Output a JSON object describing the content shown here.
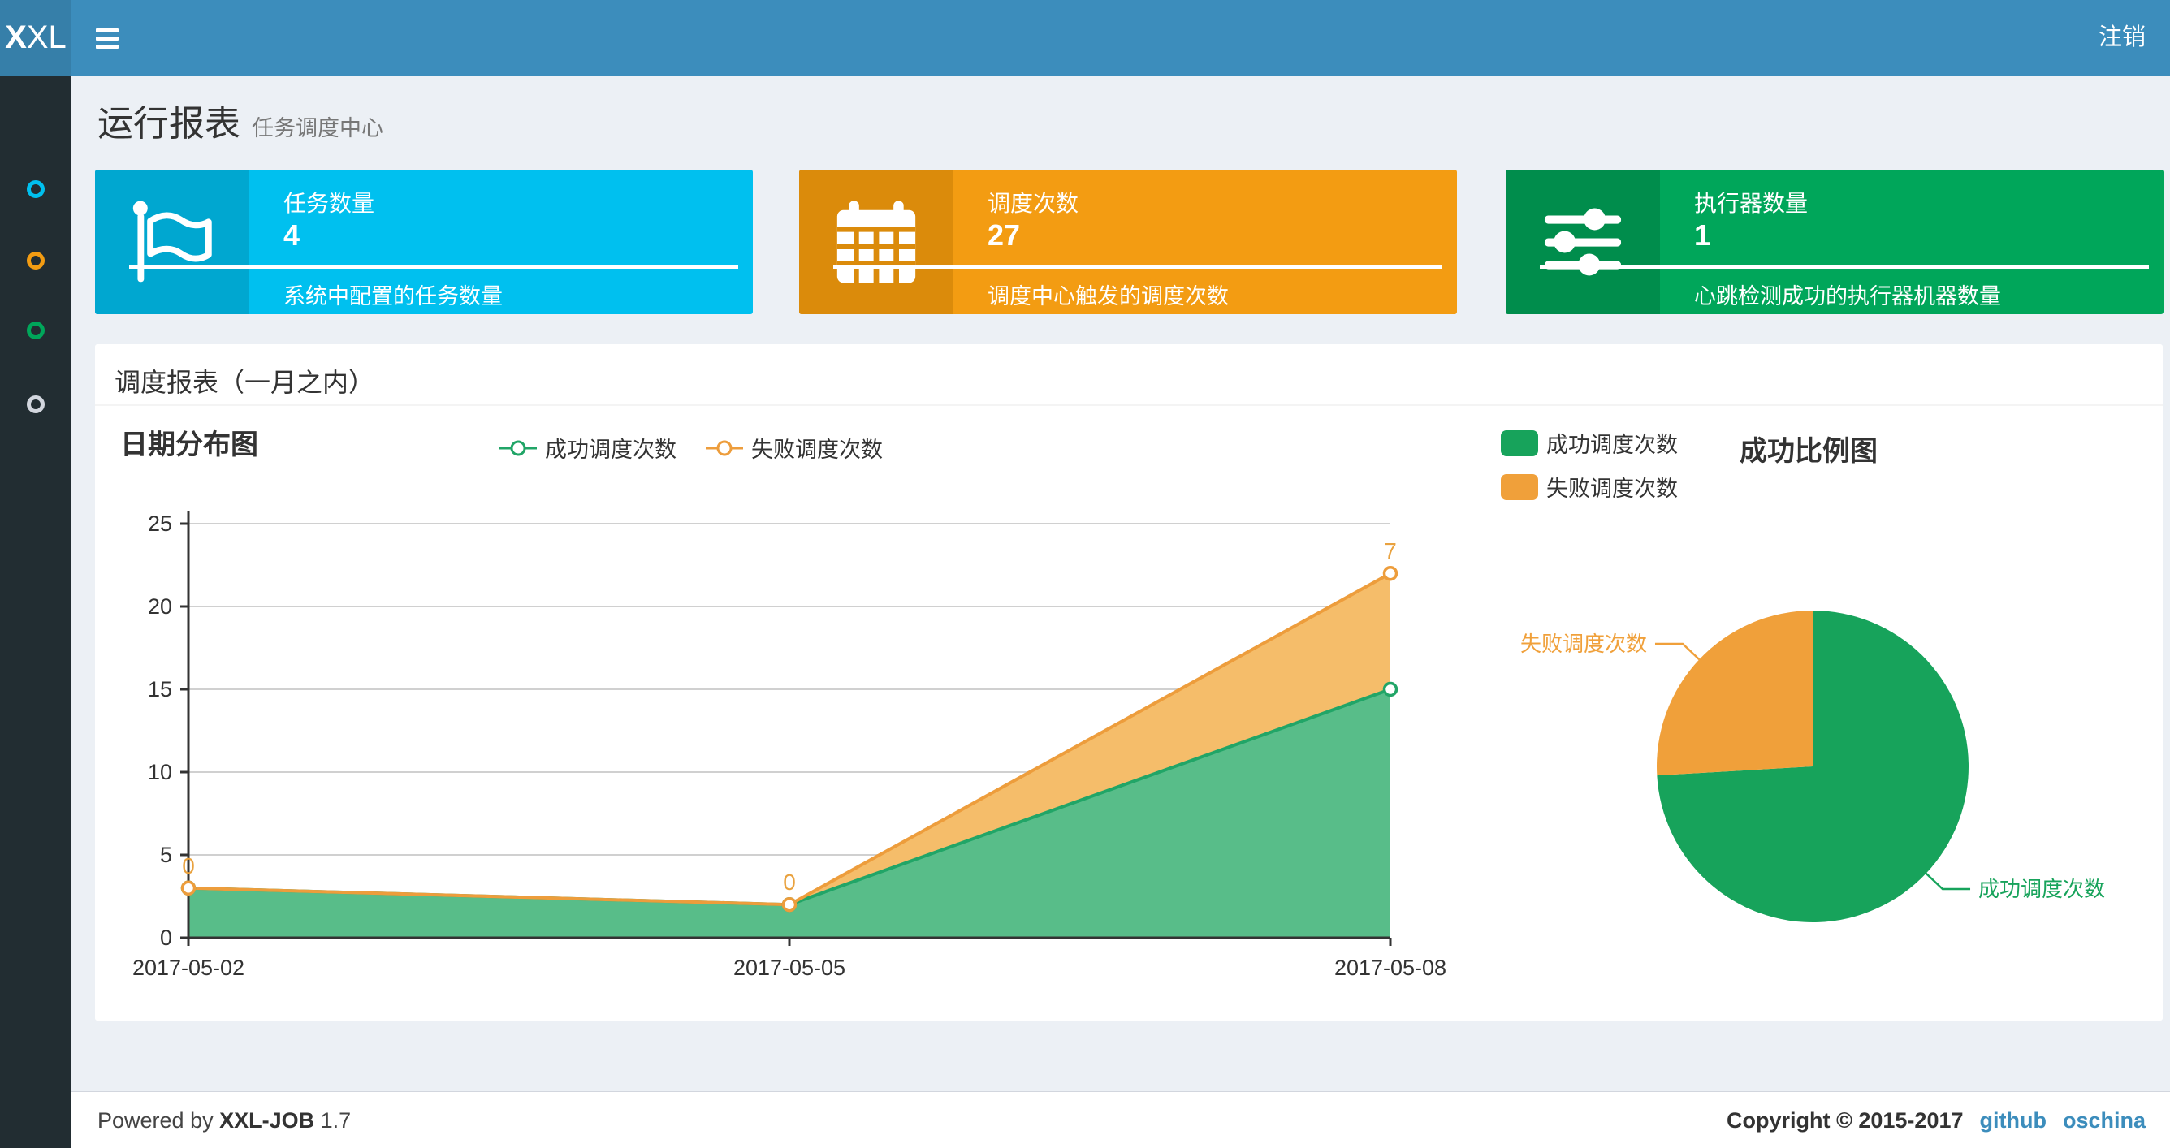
{
  "navbar": {
    "logo_bold": "X",
    "logo_rest": "XL",
    "logout_label": "注销"
  },
  "sidebar": {
    "items": [
      {
        "color": "#00c0ef"
      },
      {
        "color": "#f39c12"
      },
      {
        "color": "#00a65a"
      },
      {
        "color": "#d2d6de"
      }
    ]
  },
  "page_header": {
    "title": "运行报表",
    "subtitle": "任务调度中心"
  },
  "stat_boxes": [
    {
      "title": "任务数量",
      "value": "4",
      "description": "系统中配置的任务数量",
      "bg": "#00c0ef",
      "icon_bg": "#00a7d0",
      "icon": "flag-icon"
    },
    {
      "title": "调度次数",
      "value": "27",
      "description": "调度中心触发的调度次数",
      "bg": "#f39c12",
      "icon_bg": "#db8b0b",
      "icon": "calendar-icon"
    },
    {
      "title": "执行器数量",
      "value": "1",
      "description": "心跳检测成功的执行器机器数量",
      "bg": "#00a65a",
      "icon_bg": "#008d4c",
      "icon": "sliders-icon"
    }
  ],
  "panel": {
    "title": "调度报表（一月之内）"
  },
  "chart_data": [
    {
      "type": "area",
      "title": "日期分布图",
      "stacked": true,
      "x": [
        "2017-05-02",
        "2017-05-05",
        "2017-05-08"
      ],
      "series": [
        {
          "name": "成功调度次数",
          "values": [
            3,
            2,
            15
          ],
          "line_color": "#21a567",
          "fill_color": "#58bd89"
        },
        {
          "name": "失败调度次数",
          "values": [
            0,
            0,
            7
          ],
          "line_color": "#ed9d3c",
          "fill_color": "#f5bd6a",
          "point_labels": [
            "0",
            "0",
            "7"
          ]
        }
      ],
      "ylim": [
        0,
        25
      ],
      "ytick_step": 5,
      "grid": true,
      "legend_position": "top-center",
      "point_label_color": "#e9a23f",
      "axis_color": "#333333",
      "grid_color": "#d0d0d0"
    },
    {
      "type": "pie",
      "title": "成功比例图",
      "slices": [
        {
          "name": "成功调度次数",
          "value": 20,
          "color": "#17a35b"
        },
        {
          "name": "失败调度次数",
          "value": 7,
          "color": "#f0a03a"
        }
      ],
      "total": 27,
      "start_angle_deg": 90,
      "clockwise": true,
      "legend_position": "top-left"
    }
  ],
  "footer": {
    "powered_prefix": "Powered by ",
    "product": "XXL-JOB",
    "version": " 1.7",
    "copyright": "Copyright © 2015-2017",
    "links": [
      {
        "label": "github"
      },
      {
        "label": "oschina"
      }
    ]
  }
}
